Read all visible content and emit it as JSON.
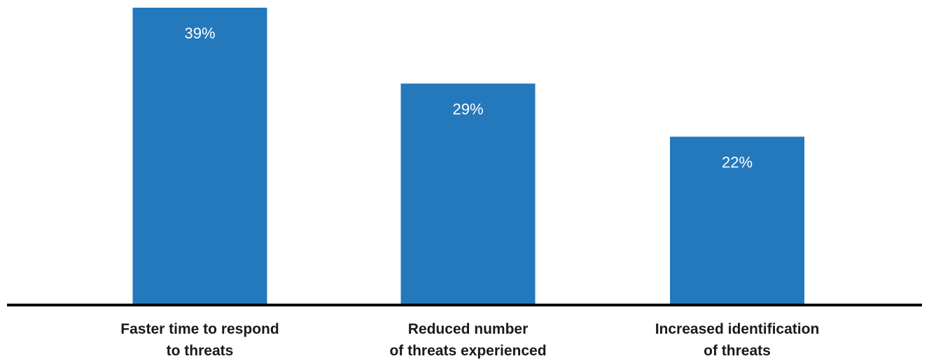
{
  "chart_data": {
    "type": "bar",
    "categories": [
      [
        "Faster time to respond",
        "to threats"
      ],
      [
        "Reduced number",
        "of threats experienced"
      ],
      [
        "Increased identification",
        "of threats"
      ]
    ],
    "values": [
      39,
      29,
      22
    ],
    "data_labels": [
      "39%",
      "29%",
      "22%"
    ],
    "ylim": [
      0,
      40
    ],
    "grid": false,
    "bar_color": "#2478BC",
    "baseline_color": "#000000"
  }
}
